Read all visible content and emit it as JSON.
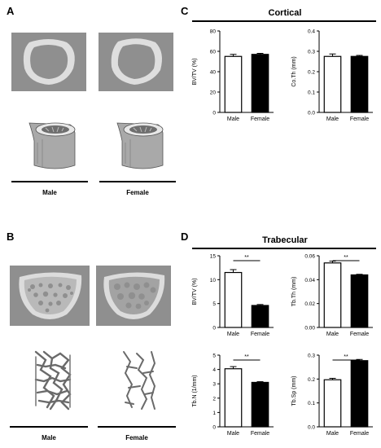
{
  "panels": {
    "a": "A",
    "b": "B",
    "c": "C",
    "d": "D"
  },
  "sections": {
    "cortical": "Cortical",
    "trabecular": "Trabecular"
  },
  "groups": {
    "male": "Male",
    "female": "Female"
  },
  "colors": {
    "scan_background": "#8f8f8f",
    "bone": "#d9d9d9",
    "male_bar": "#ffffff",
    "female_bar": "#000000"
  },
  "chart_data": [
    {
      "id": "cortical-bvtv",
      "type": "bar",
      "categories": [
        "Male",
        "Female"
      ],
      "values": [
        55,
        57
      ],
      "errors": [
        2,
        1
      ],
      "ylabel": "BV/TV (%)",
      "ylim": [
        0,
        80
      ],
      "yticks": [
        "0",
        "20",
        "40",
        "60",
        "80"
      ],
      "significance": ""
    },
    {
      "id": "cortical-ctth",
      "type": "bar",
      "categories": [
        "Male",
        "Female"
      ],
      "values": [
        0.275,
        0.275
      ],
      "errors": [
        0.012,
        0.005
      ],
      "ylabel": "Co.Th (mm)",
      "ylim": [
        0,
        0.4
      ],
      "yticks": [
        "0.0",
        "0.1",
        "0.2",
        "0.3",
        "0.4"
      ],
      "significance": ""
    },
    {
      "id": "trab-bvtv",
      "type": "bar",
      "categories": [
        "Male",
        "Female"
      ],
      "values": [
        11.5,
        4.6
      ],
      "errors": [
        0.6,
        0.2
      ],
      "ylabel": "BV/TV (%)",
      "ylim": [
        0,
        15
      ],
      "yticks": [
        "0",
        "5",
        "10",
        "15"
      ],
      "significance": "**"
    },
    {
      "id": "trab-tbth",
      "type": "bar",
      "categories": [
        "Male",
        "Female"
      ],
      "values": [
        0.054,
        0.044
      ],
      "errors": [
        0.0015,
        0.0005
      ],
      "ylabel": "Tb.Th (mm)",
      "ylim": [
        0,
        0.06
      ],
      "yticks": [
        "0.00",
        "0.02",
        "0.04",
        "0.06"
      ],
      "significance": "**"
    },
    {
      "id": "trab-tbn",
      "type": "bar",
      "categories": [
        "Male",
        "Female"
      ],
      "values": [
        4.05,
        3.1
      ],
      "errors": [
        0.15,
        0.05
      ],
      "ylabel": "Tb.N (1/mm)",
      "ylim": [
        0,
        5
      ],
      "yticks": [
        "0",
        "1",
        "2",
        "3",
        "4",
        "5"
      ],
      "significance": "**"
    },
    {
      "id": "trab-tbsp",
      "type": "bar",
      "categories": [
        "Male",
        "Female"
      ],
      "values": [
        0.197,
        0.277
      ],
      "errors": [
        0.006,
        0.005
      ],
      "ylabel": "Tb.Sp (mm)",
      "ylim": [
        0,
        0.3
      ],
      "yticks": [
        "0.0",
        "0.1",
        "0.2",
        "0.3"
      ],
      "significance": "**"
    }
  ]
}
